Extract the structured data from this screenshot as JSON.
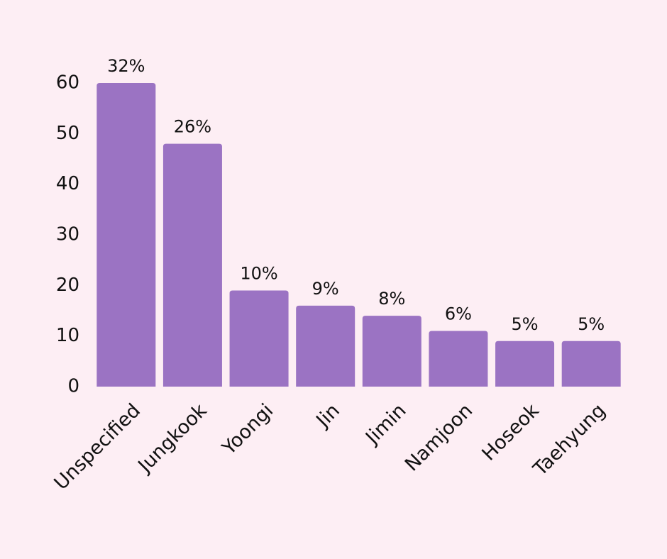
{
  "chart_data": {
    "type": "bar",
    "categories": [
      "Unspecified",
      "Jungkook",
      "Yoongi",
      "Jin",
      "Jimin",
      "Namjoon",
      "Hoseok",
      "Taehyung"
    ],
    "values": [
      60,
      48,
      19,
      16,
      14,
      11,
      9,
      9
    ],
    "value_labels": [
      "32%",
      "26%",
      "10%",
      "9%",
      "8%",
      "6%",
      "5%",
      "5%"
    ],
    "color": "#9b73c3",
    "ylim": [
      0,
      60
    ],
    "yticks": [
      0,
      10,
      20,
      30,
      40,
      50,
      60
    ],
    "grid": false
  }
}
